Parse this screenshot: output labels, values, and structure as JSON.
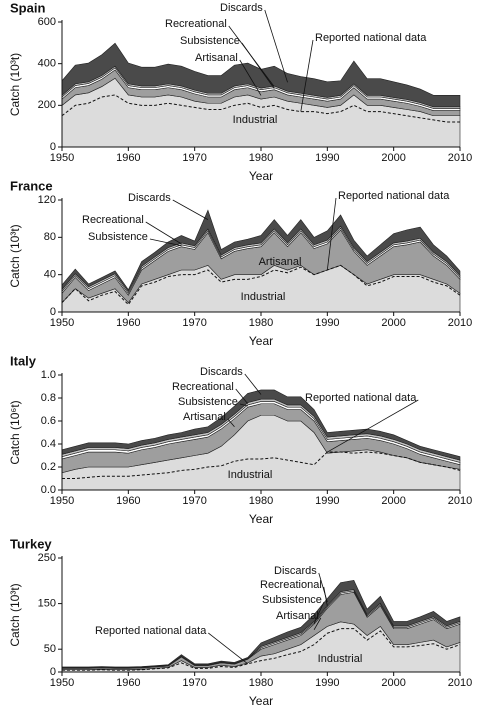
{
  "chart_data": [
    {
      "type": "area",
      "stacked": true,
      "title": "Spain",
      "xlabel": "Year",
      "ylabel": "Catch (10³t)",
      "x": [
        1950,
        1952,
        1954,
        1956,
        1958,
        1960,
        1962,
        1964,
        1966,
        1968,
        1970,
        1972,
        1974,
        1976,
        1978,
        1980,
        1982,
        1984,
        1986,
        1988,
        1990,
        1992,
        1994,
        1996,
        1998,
        2000,
        2002,
        2004,
        2006,
        2008,
        2010
      ],
      "xlim": [
        1950,
        2010
      ],
      "xticks": [
        1950,
        1960,
        1970,
        1980,
        1990,
        2000,
        2010
      ],
      "ylim": [
        0,
        600
      ],
      "yticks": [
        0,
        200,
        400,
        600
      ],
      "series": [
        {
          "name": "Industrial",
          "color": "#dcdcdc",
          "values": [
            200,
            250,
            260,
            290,
            330,
            250,
            240,
            240,
            250,
            240,
            220,
            210,
            210,
            240,
            250,
            230,
            240,
            220,
            210,
            200,
            190,
            200,
            250,
            200,
            200,
            190,
            180,
            170,
            150,
            150,
            150
          ]
        },
        {
          "name": "Artisanal",
          "color": "#9e9e9e",
          "values": [
            30,
            35,
            35,
            35,
            40,
            35,
            35,
            35,
            35,
            35,
            35,
            30,
            30,
            35,
            35,
            35,
            35,
            30,
            30,
            30,
            30,
            30,
            35,
            30,
            30,
            30,
            30,
            25,
            25,
            25,
            25
          ]
        },
        {
          "name": "Subsistence",
          "color": "#ffffff",
          "values": [
            10,
            10,
            10,
            10,
            10,
            10,
            10,
            10,
            10,
            10,
            10,
            10,
            10,
            10,
            10,
            10,
            10,
            10,
            10,
            10,
            10,
            10,
            10,
            10,
            10,
            10,
            10,
            10,
            10,
            10,
            10
          ]
        },
        {
          "name": "Recreational",
          "color": "#c4c4c4",
          "values": [
            8,
            8,
            8,
            8,
            8,
            8,
            8,
            8,
            8,
            8,
            8,
            8,
            8,
            8,
            8,
            8,
            8,
            8,
            8,
            8,
            8,
            8,
            8,
            8,
            8,
            8,
            8,
            8,
            8,
            8,
            8
          ]
        },
        {
          "name": "Discards",
          "color": "#4a4a4a",
          "values": [
            70,
            90,
            90,
            100,
            110,
            100,
            90,
            90,
            95,
            95,
            90,
            85,
            85,
            100,
            100,
            90,
            95,
            85,
            80,
            80,
            75,
            70,
            110,
            80,
            80,
            75,
            70,
            65,
            55,
            55,
            55
          ]
        },
        {
          "name": "Reported national data",
          "type": "line",
          "dash": true,
          "color": "#111111",
          "values": [
            150,
            200,
            210,
            240,
            250,
            210,
            200,
            200,
            210,
            200,
            190,
            180,
            180,
            200,
            210,
            190,
            200,
            180,
            170,
            170,
            160,
            170,
            200,
            170,
            170,
            160,
            150,
            140,
            130,
            120,
            120
          ]
        }
      ]
    },
    {
      "type": "area",
      "stacked": true,
      "title": "France",
      "xlabel": "Year",
      "ylabel": "Catch (10³t)",
      "x": [
        1950,
        1952,
        1954,
        1956,
        1958,
        1960,
        1962,
        1964,
        1966,
        1968,
        1970,
        1972,
        1974,
        1976,
        1978,
        1980,
        1982,
        1984,
        1986,
        1988,
        1990,
        1992,
        1994,
        1996,
        1998,
        2000,
        2002,
        2004,
        2006,
        2008,
        2010
      ],
      "xlim": [
        1950,
        2010
      ],
      "xticks": [
        1950,
        1960,
        1970,
        1980,
        1990,
        2000,
        2010
      ],
      "ylim": [
        0,
        120
      ],
      "yticks": [
        0,
        40,
        80,
        120
      ],
      "series": [
        {
          "name": "Industrial",
          "color": "#dcdcdc",
          "values": [
            10,
            25,
            15,
            20,
            25,
            10,
            30,
            35,
            40,
            45,
            45,
            50,
            35,
            40,
            40,
            40,
            50,
            45,
            50,
            40,
            45,
            50,
            40,
            30,
            35,
            40,
            40,
            40,
            35,
            30,
            20
          ]
        },
        {
          "name": "Artisanal",
          "color": "#9e9e9e",
          "values": [
            10,
            12,
            8,
            10,
            12,
            8,
            15,
            20,
            25,
            25,
            22,
            35,
            22,
            25,
            28,
            30,
            35,
            25,
            35,
            28,
            28,
            38,
            25,
            20,
            25,
            30,
            32,
            35,
            25,
            20,
            15
          ]
        },
        {
          "name": "Subsistence",
          "color": "#ffffff",
          "values": [
            2,
            2,
            2,
            2,
            2,
            2,
            2,
            2,
            2,
            2,
            2,
            2,
            2,
            2,
            2,
            2,
            2,
            2,
            2,
            2,
            2,
            2,
            2,
            2,
            2,
            2,
            2,
            2,
            2,
            2,
            2
          ]
        },
        {
          "name": "Recreational",
          "color": "#c4c4c4",
          "values": [
            2,
            2,
            2,
            2,
            2,
            2,
            2,
            2,
            2,
            2,
            2,
            2,
            2,
            2,
            2,
            2,
            2,
            2,
            2,
            2,
            2,
            2,
            2,
            2,
            2,
            2,
            2,
            2,
            2,
            2,
            2
          ]
        },
        {
          "name": "Discards",
          "color": "#4a4a4a",
          "values": [
            5,
            5,
            3,
            3,
            3,
            2,
            5,
            5,
            6,
            8,
            5,
            20,
            6,
            6,
            6,
            8,
            10,
            8,
            10,
            8,
            10,
            12,
            8,
            6,
            8,
            10,
            12,
            12,
            8,
            6,
            5
          ]
        },
        {
          "name": "Reported national data",
          "type": "line",
          "dash": true,
          "color": "#111111",
          "values": [
            10,
            25,
            12,
            18,
            22,
            8,
            28,
            32,
            38,
            40,
            40,
            45,
            32,
            35,
            35,
            38,
            45,
            42,
            48,
            40,
            45,
            50,
            40,
            28,
            32,
            38,
            38,
            38,
            32,
            28,
            18
          ]
        }
      ]
    },
    {
      "type": "area",
      "stacked": true,
      "title": "Italy",
      "xlabel": "Year",
      "ylabel": "Catch (10⁶t)",
      "x": [
        1950,
        1952,
        1954,
        1956,
        1958,
        1960,
        1962,
        1964,
        1966,
        1968,
        1970,
        1972,
        1974,
        1976,
        1978,
        1980,
        1982,
        1984,
        1986,
        1988,
        1990,
        1992,
        1994,
        1996,
        1998,
        2000,
        2002,
        2004,
        2006,
        2008,
        2010
      ],
      "xlim": [
        1950,
        2010
      ],
      "xticks": [
        1950,
        1960,
        1970,
        1980,
        1990,
        2000,
        2010
      ],
      "ylim": [
        0,
        1.0
      ],
      "yticks": [
        {
          "value": 0,
          "label": "0.0"
        },
        0.2,
        0.4,
        0.6,
        0.8,
        {
          "value": 1.0,
          "label": "1.0"
        }
      ],
      "series": [
        {
          "name": "Industrial",
          "color": "#dcdcdc",
          "values": [
            0.15,
            0.18,
            0.2,
            0.2,
            0.2,
            0.2,
            0.22,
            0.24,
            0.26,
            0.28,
            0.3,
            0.32,
            0.38,
            0.48,
            0.6,
            0.65,
            0.65,
            0.6,
            0.6,
            0.5,
            0.32,
            0.33,
            0.34,
            0.35,
            0.33,
            0.3,
            0.28,
            0.24,
            0.22,
            0.2,
            0.18
          ]
        },
        {
          "name": "Artisanal",
          "color": "#9e9e9e",
          "values": [
            0.12,
            0.12,
            0.13,
            0.13,
            0.13,
            0.12,
            0.13,
            0.13,
            0.14,
            0.14,
            0.14,
            0.14,
            0.15,
            0.14,
            0.12,
            0.1,
            0.1,
            0.1,
            0.1,
            0.1,
            0.1,
            0.1,
            0.1,
            0.1,
            0.1,
            0.1,
            0.08,
            0.07,
            0.06,
            0.05,
            0.04
          ]
        },
        {
          "name": "Subsistence",
          "color": "#ffffff",
          "values": [
            0.02,
            0.02,
            0.02,
            0.02,
            0.02,
            0.02,
            0.02,
            0.02,
            0.02,
            0.02,
            0.02,
            0.02,
            0.02,
            0.02,
            0.02,
            0.02,
            0.02,
            0.02,
            0.02,
            0.02,
            0.02,
            0.02,
            0.02,
            0.02,
            0.02,
            0.02,
            0.02,
            0.02,
            0.02,
            0.02,
            0.02
          ]
        },
        {
          "name": "Recreational",
          "color": "#c4c4c4",
          "values": [
            0.02,
            0.02,
            0.02,
            0.02,
            0.02,
            0.02,
            0.02,
            0.02,
            0.02,
            0.02,
            0.02,
            0.02,
            0.02,
            0.02,
            0.02,
            0.02,
            0.02,
            0.02,
            0.02,
            0.02,
            0.02,
            0.02,
            0.02,
            0.02,
            0.02,
            0.02,
            0.02,
            0.02,
            0.02,
            0.02,
            0.02
          ]
        },
        {
          "name": "Discards",
          "color": "#4a4a4a",
          "values": [
            0.04,
            0.04,
            0.04,
            0.04,
            0.04,
            0.04,
            0.04,
            0.04,
            0.04,
            0.04,
            0.05,
            0.05,
            0.06,
            0.07,
            0.08,
            0.08,
            0.08,
            0.07,
            0.07,
            0.06,
            0.04,
            0.04,
            0.04,
            0.04,
            0.04,
            0.04,
            0.03,
            0.03,
            0.03,
            0.03,
            0.03
          ]
        },
        {
          "name": "Reported national data",
          "type": "line",
          "dash": true,
          "color": "#111111",
          "values": [
            0.1,
            0.1,
            0.11,
            0.12,
            0.12,
            0.12,
            0.13,
            0.14,
            0.15,
            0.17,
            0.18,
            0.2,
            0.21,
            0.25,
            0.27,
            0.27,
            0.28,
            0.26,
            0.24,
            0.22,
            0.33,
            0.33,
            0.32,
            0.33,
            0.32,
            0.3,
            0.28,
            0.24,
            0.22,
            0.2,
            0.17
          ]
        }
      ]
    },
    {
      "type": "area",
      "stacked": true,
      "title": "Turkey",
      "xlabel": "Year",
      "ylabel": "Catch (10³t)",
      "x": [
        1950,
        1952,
        1954,
        1956,
        1958,
        1960,
        1962,
        1964,
        1966,
        1968,
        1970,
        1972,
        1974,
        1976,
        1978,
        1980,
        1982,
        1984,
        1986,
        1988,
        1990,
        1992,
        1994,
        1996,
        1998,
        2000,
        2002,
        2004,
        2006,
        2008,
        2010
      ],
      "xlim": [
        1950,
        2010
      ],
      "xticks": [
        1950,
        1960,
        1970,
        1980,
        1990,
        2000,
        2010
      ],
      "ylim": [
        0,
        250
      ],
      "yticks": [
        0,
        50,
        150,
        250
      ],
      "series": [
        {
          "name": "Industrial",
          "color": "#dcdcdc",
          "values": [
            5,
            5,
            5,
            6,
            5,
            5,
            6,
            8,
            10,
            25,
            10,
            10,
            15,
            12,
            20,
            35,
            40,
            50,
            60,
            80,
            100,
            110,
            105,
            80,
            100,
            60,
            60,
            65,
            70,
            55,
            65
          ]
        },
        {
          "name": "Artisanal",
          "color": "#9e9e9e",
          "values": [
            3,
            3,
            3,
            3,
            3,
            3,
            3,
            3,
            3,
            8,
            4,
            4,
            5,
            5,
            8,
            15,
            20,
            20,
            20,
            25,
            40,
            60,
            70,
            40,
            45,
            35,
            35,
            40,
            45,
            40,
            40
          ]
        },
        {
          "name": "Subsistence",
          "color": "#ffffff",
          "values": [
            1,
            1,
            1,
            1,
            1,
            1,
            1,
            1,
            1,
            1,
            1,
            1,
            1,
            1,
            1,
            3,
            3,
            3,
            3,
            3,
            3,
            3,
            3,
            3,
            3,
            3,
            3,
            3,
            3,
            3,
            3
          ]
        },
        {
          "name": "Recreational",
          "color": "#c4c4c4",
          "values": [
            1,
            1,
            1,
            1,
            1,
            1,
            1,
            1,
            1,
            1,
            1,
            1,
            1,
            1,
            1,
            3,
            3,
            3,
            3,
            3,
            3,
            3,
            3,
            3,
            3,
            3,
            3,
            3,
            3,
            3,
            3
          ]
        },
        {
          "name": "Discards",
          "color": "#4a4a4a",
          "values": [
            1,
            1,
            1,
            1,
            1,
            1,
            1,
            1,
            1,
            3,
            2,
            2,
            2,
            2,
            2,
            8,
            10,
            12,
            12,
            15,
            15,
            20,
            20,
            12,
            15,
            10,
            10,
            10,
            12,
            10,
            10
          ]
        },
        {
          "name": "Reported national data",
          "type": "line",
          "dash": true,
          "color": "#111111",
          "values": [
            4,
            4,
            4,
            5,
            4,
            4,
            5,
            7,
            9,
            20,
            8,
            8,
            12,
            10,
            18,
            25,
            30,
            38,
            45,
            60,
            85,
            95,
            95,
            70,
            90,
            55,
            55,
            58,
            62,
            50,
            60
          ]
        }
      ]
    }
  ]
}
